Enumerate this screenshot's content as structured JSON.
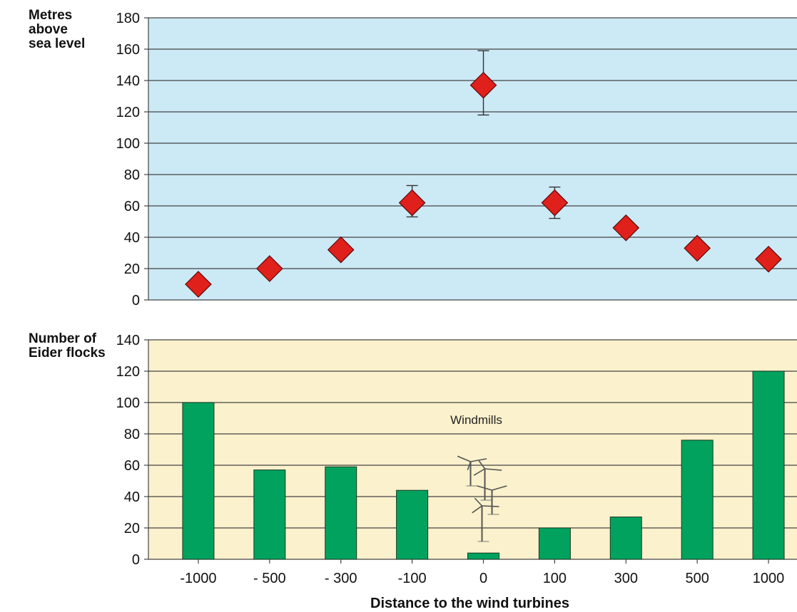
{
  "chart_data": [
    {
      "type": "scatter",
      "ylabel_lines": [
        "Metres",
        "above",
        "sea level"
      ],
      "categories": [
        "-1000",
        "- 500",
        "- 300",
        "-100",
        "0",
        "100",
        "300",
        "500",
        "1000"
      ],
      "ylim": [
        0,
        180
      ],
      "yticks": [
        0,
        20,
        40,
        60,
        80,
        100,
        120,
        140,
        160,
        180
      ],
      "grid": true,
      "background": "#cce9f6",
      "marker_color": "#e0201b",
      "series": [
        {
          "values": [
            10,
            20,
            32,
            62,
            137,
            62,
            46,
            33,
            26
          ],
          "error_low": [
            null,
            null,
            null,
            53,
            118,
            52,
            null,
            null,
            null
          ],
          "error_high": [
            null,
            null,
            null,
            73,
            159,
            72,
            null,
            null,
            null
          ]
        }
      ]
    },
    {
      "type": "bar",
      "ylabel_lines": [
        "Number of",
        "Eider flocks"
      ],
      "categories": [
        "-1000",
        "- 500",
        "- 300",
        "-100",
        "0",
        "100",
        "300",
        "500",
        "1000"
      ],
      "ylim": [
        0,
        140
      ],
      "yticks": [
        0,
        20,
        40,
        60,
        80,
        100,
        120,
        140
      ],
      "grid": true,
      "background": "#fbf1cc",
      "bar_color": "#00a25e",
      "series": [
        {
          "values": [
            100,
            57,
            59,
            44,
            4,
            20,
            27,
            76,
            120
          ]
        }
      ],
      "annotation": "Windmills",
      "xlabel": "Distance to the wind turbines"
    }
  ]
}
